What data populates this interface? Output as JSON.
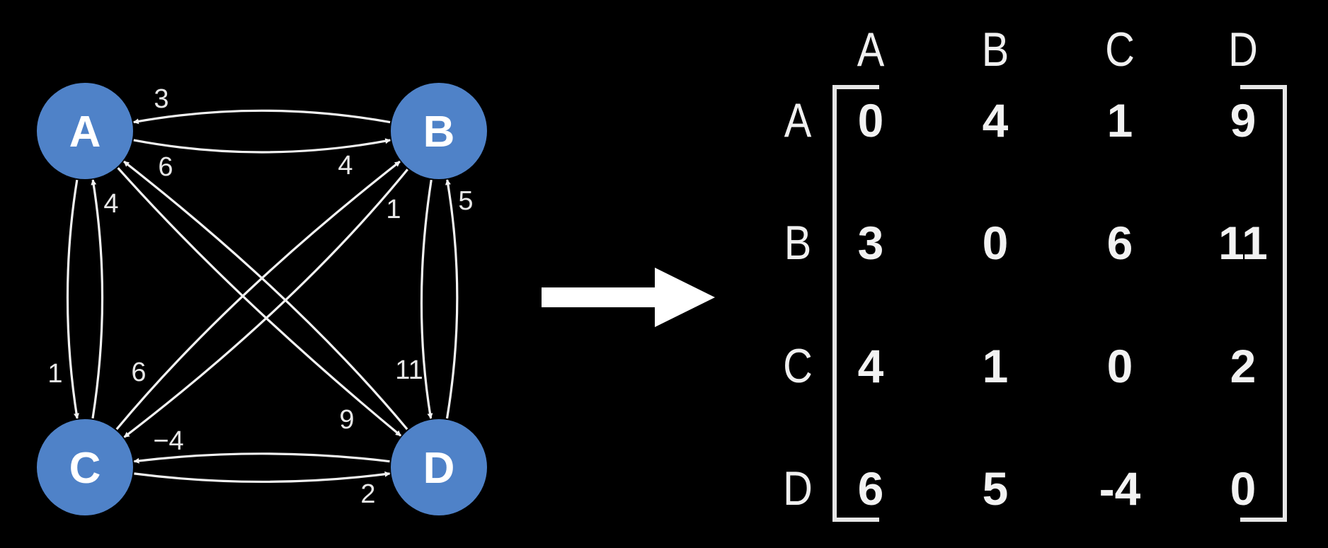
{
  "graph": {
    "nodes": [
      {
        "id": "A",
        "label": "A"
      },
      {
        "id": "B",
        "label": "B"
      },
      {
        "id": "C",
        "label": "C"
      },
      {
        "id": "D",
        "label": "D"
      }
    ],
    "edges": [
      {
        "from": "B",
        "to": "A",
        "weight": "3"
      },
      {
        "from": "A",
        "to": "B",
        "weight": "4"
      },
      {
        "from": "D",
        "to": "A",
        "weight": "6"
      },
      {
        "from": "C",
        "to": "A",
        "weight": "4"
      },
      {
        "from": "A",
        "to": "C",
        "weight": "1"
      },
      {
        "from": "C",
        "to": "B",
        "weight": "1"
      },
      {
        "from": "B",
        "to": "C",
        "weight": "6"
      },
      {
        "from": "D",
        "to": "B",
        "weight": "5"
      },
      {
        "from": "B",
        "to": "D",
        "weight": "11"
      },
      {
        "from": "A",
        "to": "D",
        "weight": "9"
      },
      {
        "from": "D",
        "to": "C",
        "weight": "−4"
      },
      {
        "from": "C",
        "to": "D",
        "weight": "2"
      }
    ],
    "node_color": "#4f82c8"
  },
  "matrix": {
    "col_headers": [
      "A",
      "B",
      "C",
      "D"
    ],
    "row_headers": [
      "A",
      "B",
      "C",
      "D"
    ],
    "rows": [
      [
        "0",
        "4",
        "1",
        "9"
      ],
      [
        "3",
        "0",
        "6",
        "11"
      ],
      [
        "4",
        "1",
        "0",
        "2"
      ],
      [
        "6",
        "5",
        "-4",
        "0"
      ]
    ]
  }
}
